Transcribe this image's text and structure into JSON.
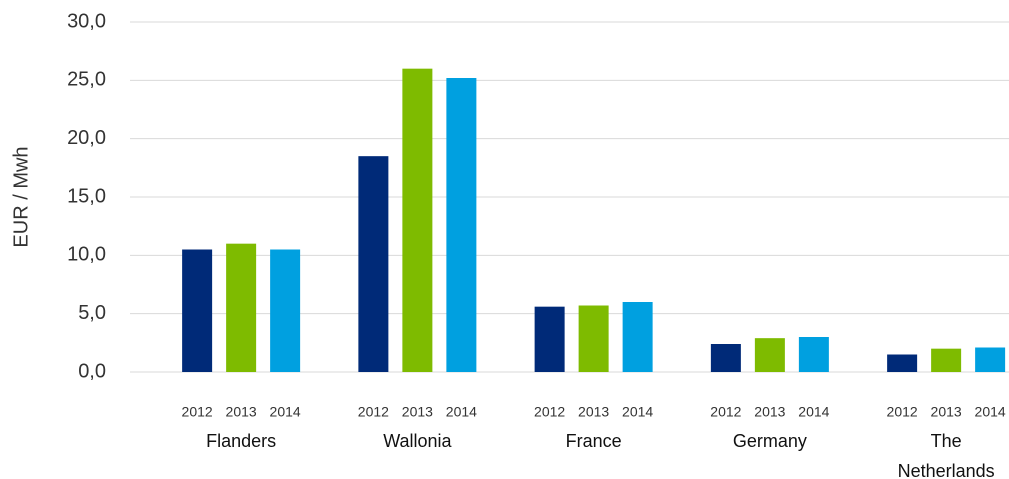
{
  "chart_data": {
    "type": "bar",
    "y_label": "EUR / Mwh",
    "categories": [
      "Flanders",
      "Wallonia",
      "France",
      "Germany",
      "The Netherlands"
    ],
    "series": [
      {
        "name": "2012",
        "color": "#002a78",
        "values": [
          10.5,
          18.5,
          5.6,
          2.4,
          1.5
        ]
      },
      {
        "name": "2013",
        "color": "#7ebb00",
        "values": [
          11.0,
          26.0,
          5.7,
          2.9,
          2.0
        ]
      },
      {
        "name": "2014",
        "color": "#00a0e0",
        "values": [
          10.5,
          25.2,
          6.0,
          3.0,
          2.1
        ]
      }
    ],
    "ylim": [
      0,
      30
    ],
    "yticks": [
      {
        "value": 0,
        "label": "0,0"
      },
      {
        "value": 5,
        "label": "5,0"
      },
      {
        "value": 10,
        "label": "10,0"
      },
      {
        "value": 15,
        "label": "15,0"
      },
      {
        "value": 20,
        "label": "20,0"
      },
      {
        "value": 25,
        "label": "25,0"
      },
      {
        "value": 30,
        "label": "30,0"
      }
    ],
    "grid": true
  }
}
